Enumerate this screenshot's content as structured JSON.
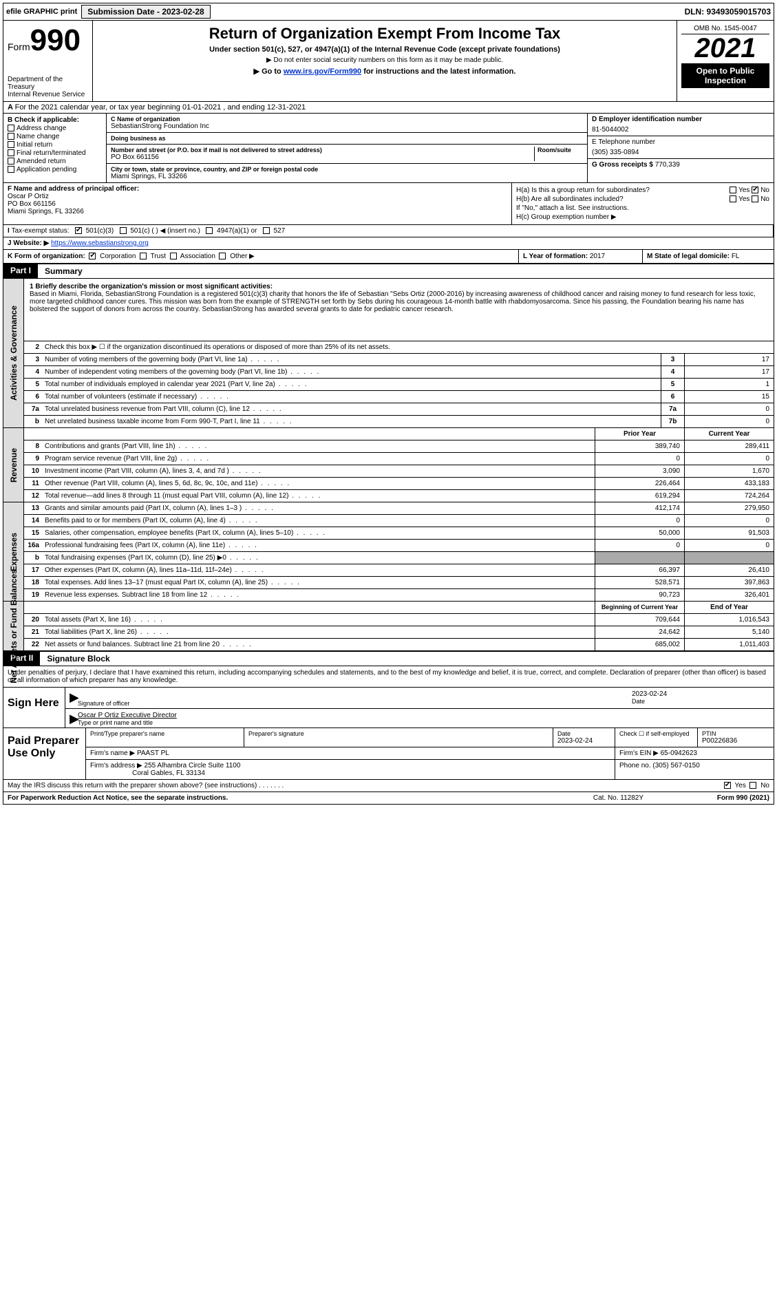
{
  "topbar": {
    "efile": "efile GRAPHIC print",
    "sub_label": "Submission Date - 2023-02-28",
    "dln": "DLN: 93493059015703"
  },
  "header": {
    "form_word": "Form",
    "form_num": "990",
    "title": "Return of Organization Exempt From Income Tax",
    "sub1": "Under section 501(c), 527, or 4947(a)(1) of the Internal Revenue Code (except private foundations)",
    "sub2": "▶ Do not enter social security numbers on this form as it may be made public.",
    "sub3_pre": "▶ Go to ",
    "sub3_link": "www.irs.gov/Form990",
    "sub3_post": " for instructions and the latest information.",
    "omb": "OMB No. 1545-0047",
    "year": "2021",
    "open": "Open to Public Inspection",
    "dept": "Department of the Treasury",
    "irs": "Internal Revenue Service"
  },
  "row_a": "For the 2021 calendar year, or tax year beginning 01-01-2021   , and ending 12-31-2021",
  "col_b": {
    "hdr": "B Check if applicable:",
    "items": [
      "Address change",
      "Name change",
      "Initial return",
      "Final return/terminated",
      "Amended return",
      "Application pending"
    ]
  },
  "col_c": {
    "name_lbl": "C Name of organization",
    "name": "SebastianStrong Foundation Inc",
    "dba_lbl": "Doing business as",
    "dba": "",
    "street_lbl": "Number and street (or P.O. box if mail is not delivered to street address)",
    "room_lbl": "Room/suite",
    "street": "PO Box 661156",
    "city_lbl": "City or town, state or province, country, and ZIP or foreign postal code",
    "city": "Miami Springs, FL  33266"
  },
  "col_d": {
    "ein_lbl": "D Employer identification number",
    "ein": "81-5044002",
    "tel_lbl": "E Telephone number",
    "tel": "(305) 335-0894",
    "gross_lbl": "G Gross receipts $",
    "gross": "770,339"
  },
  "row_f": {
    "lbl": "F  Name and address of principal officer:",
    "name": "Oscar P Ortiz",
    "street": "PO Box 661156",
    "city": "Miami Springs, FL  33266",
    "ha": "H(a)  Is this a group return for subordinates?",
    "hb": "H(b)  Are all subordinates included?",
    "hb_note": "If \"No,\" attach a list. See instructions.",
    "hc": "H(c)  Group exemption number ▶",
    "yes": "Yes",
    "no": "No"
  },
  "row_i": {
    "lbl": "Tax-exempt status:",
    "o1": "501(c)(3)",
    "o2": "501(c) (   ) ◀ (insert no.)",
    "o3": "4947(a)(1) or",
    "o4": "527"
  },
  "row_j": {
    "lbl": "Website: ▶",
    "url": "https://www.sebastianstrong.org"
  },
  "row_k": {
    "lbl": "K Form of organization:",
    "o1": "Corporation",
    "o2": "Trust",
    "o3": "Association",
    "o4": "Other ▶",
    "l_lbl": "L Year of formation:",
    "l_val": "2017",
    "m_lbl": "M State of legal domicile:",
    "m_val": "FL"
  },
  "part1": {
    "lbl": "Part I",
    "title": "Summary"
  },
  "mission": {
    "lbl": "1   Briefly describe the organization's mission or most significant activities:",
    "txt": "Based in Miami, Florida, SebastianStrong Foundation is a registered 501(c)(3) charity that honors the life of Sebastian \"Sebs Ortiz (2000-2016) by increasing awareness of childhood cancer and raising money to fund research for less toxic, more targeted childhood cancer cures. This mission was born from the example of STRENGTH set forth by Sebs during his courageous 14-month battle with rhabdomyosarcoma. Since his passing, the Foundation bearing his name has bolstered the support of donors from across the country. SebastianStrong has awarded several grants to date for pediatric cancer research."
  },
  "gov_rows": [
    {
      "n": "2",
      "txt": "Check this box ▶ ☐  if the organization discontinued its operations or disposed of more than 25% of its net assets."
    },
    {
      "n": "3",
      "txt": "Number of voting members of the governing body (Part VI, line 1a)",
      "box": "3",
      "v": "17"
    },
    {
      "n": "4",
      "txt": "Number of independent voting members of the governing body (Part VI, line 1b)",
      "box": "4",
      "v": "17"
    },
    {
      "n": "5",
      "txt": "Total number of individuals employed in calendar year 2021 (Part V, line 2a)",
      "box": "5",
      "v": "1"
    },
    {
      "n": "6",
      "txt": "Total number of volunteers (estimate if necessary)",
      "box": "6",
      "v": "15"
    },
    {
      "n": "7a",
      "txt": "Total unrelated business revenue from Part VIII, column (C), line 12",
      "box": "7a",
      "v": "0"
    },
    {
      "n": "b",
      "txt": "Net unrelated business taxable income from Form 990-T, Part I, line 11",
      "box": "7b",
      "v": "0"
    }
  ],
  "rev_hdr": {
    "prior": "Prior Year",
    "current": "Current Year"
  },
  "rev_rows": [
    {
      "n": "8",
      "txt": "Contributions and grants (Part VIII, line 1h)",
      "p": "389,740",
      "c": "289,411"
    },
    {
      "n": "9",
      "txt": "Program service revenue (Part VIII, line 2g)",
      "p": "0",
      "c": "0"
    },
    {
      "n": "10",
      "txt": "Investment income (Part VIII, column (A), lines 3, 4, and 7d )",
      "p": "3,090",
      "c": "1,670"
    },
    {
      "n": "11",
      "txt": "Other revenue (Part VIII, column (A), lines 5, 6d, 8c, 9c, 10c, and 11e)",
      "p": "226,464",
      "c": "433,183"
    },
    {
      "n": "12",
      "txt": "Total revenue—add lines 8 through 11 (must equal Part VIII, column (A), line 12)",
      "p": "619,294",
      "c": "724,264"
    }
  ],
  "exp_rows": [
    {
      "n": "13",
      "txt": "Grants and similar amounts paid (Part IX, column (A), lines 1–3 )",
      "p": "412,174",
      "c": "279,950"
    },
    {
      "n": "14",
      "txt": "Benefits paid to or for members (Part IX, column (A), line 4)",
      "p": "0",
      "c": "0"
    },
    {
      "n": "15",
      "txt": "Salaries, other compensation, employee benefits (Part IX, column (A), lines 5–10)",
      "p": "50,000",
      "c": "91,503"
    },
    {
      "n": "16a",
      "txt": "Professional fundraising fees (Part IX, column (A), line 11e)",
      "p": "0",
      "c": "0"
    },
    {
      "n": "b",
      "txt": "Total fundraising expenses (Part IX, column (D), line 25) ▶0",
      "p": "shade",
      "c": "shade"
    },
    {
      "n": "17",
      "txt": "Other expenses (Part IX, column (A), lines 11a–11d, 11f–24e)",
      "p": "66,397",
      "c": "26,410"
    },
    {
      "n": "18",
      "txt": "Total expenses. Add lines 13–17 (must equal Part IX, column (A), line 25)",
      "p": "528,571",
      "c": "397,863"
    },
    {
      "n": "19",
      "txt": "Revenue less expenses. Subtract line 18 from line 12",
      "p": "90,723",
      "c": "326,401"
    }
  ],
  "na_hdr": {
    "prior": "Beginning of Current Year",
    "current": "End of Year"
  },
  "na_rows": [
    {
      "n": "20",
      "txt": "Total assets (Part X, line 16)",
      "p": "709,644",
      "c": "1,016,543"
    },
    {
      "n": "21",
      "txt": "Total liabilities (Part X, line 26)",
      "p": "24,642",
      "c": "5,140"
    },
    {
      "n": "22",
      "txt": "Net assets or fund balances. Subtract line 21 from line 20",
      "p": "685,002",
      "c": "1,011,403"
    }
  ],
  "part2": {
    "lbl": "Part II",
    "title": "Signature Block"
  },
  "sig": {
    "decl": "Under penalties of perjury, I declare that I have examined this return, including accompanying schedules and statements, and to the best of my knowledge and belief, it is true, correct, and complete. Declaration of preparer (other than officer) is based on all information of which preparer has any knowledge.",
    "here": "Sign Here",
    "officer_lbl": "Signature of officer",
    "date_lbl": "Date",
    "date": "2023-02-24",
    "name": "Oscar P Ortiz  Executive Director",
    "name_lbl": "Type or print name and title"
  },
  "prep": {
    "title": "Paid Preparer Use Only",
    "h1": "Print/Type preparer's name",
    "h2": "Preparer's signature",
    "h3": "Date",
    "h4": "Check ☐ if self-employed",
    "h5": "PTIN",
    "date": "2023-02-24",
    "ptin": "P00226836",
    "firm_lbl": "Firm's name    ▶",
    "firm": "PAAST PL",
    "ein_lbl": "Firm's EIN ▶",
    "ein": "65-0942623",
    "addr_lbl": "Firm's address ▶",
    "addr1": "255 Alhambra Circle Suite 1100",
    "addr2": "Coral Gables, FL  33134",
    "phone_lbl": "Phone no.",
    "phone": "(305) 567-0150"
  },
  "foot": {
    "discuss": "May the IRS discuss this return with the preparer shown above? (see instructions)",
    "yes": "Yes",
    "no": "No",
    "pra": "For Paperwork Reduction Act Notice, see the separate instructions.",
    "cat": "Cat. No. 11282Y",
    "form": "Form 990 (2021)"
  },
  "vtabs": {
    "gov": "Activities & Governance",
    "rev": "Revenue",
    "exp": "Expenses",
    "na": "Net Assets or Fund Balances"
  }
}
